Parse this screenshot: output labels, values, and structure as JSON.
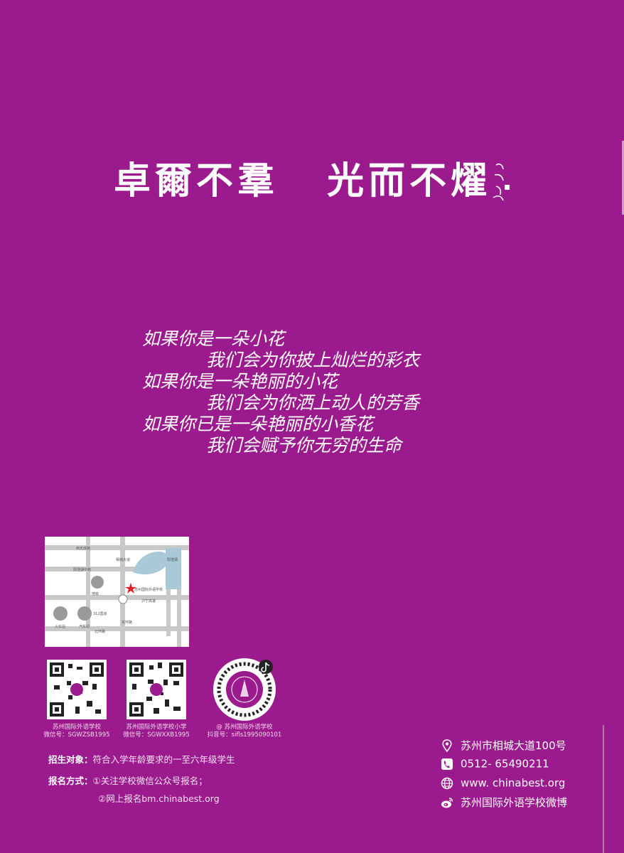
{
  "motto": {
    "part1": "卓爾不羣",
    "part2": "光而不燿"
  },
  "poem": [
    "如果你是一朵小花",
    "我们会为你披上灿烂的彩衣",
    "如果你是一朵艳丽的小花",
    "我们会为你洒上动人的芳香",
    "如果你已是一朵艳丽的小香花",
    "我们会赋予你无穷的生命"
  ],
  "map": {
    "labels": {
      "road1": "西天成路",
      "road2": "阳澄湖中路",
      "road3": "苏州北大街",
      "road4": "相城大道",
      "road5": "227省道",
      "road6": "阳澄湖",
      "road7": "沪宁高速",
      "road8": "苏嘉杭高速",
      "road9": "312国道",
      "road10": "北环路",
      "road11": "东环路",
      "station1": "火车站",
      "station2": "汽车站",
      "station3": "地铁",
      "school": "苏州国际外语学校"
    }
  },
  "qr_codes": [
    {
      "line1": "苏州国际外语学校",
      "line2": "微信号：SGWZSB1995"
    },
    {
      "line1": "苏州国际外语学校小学",
      "line2": "微信号：SGWXXB1995"
    },
    {
      "line1": "@ 苏州国际外语学校",
      "line2": "抖音号：sifls1995090101"
    }
  ],
  "enroll": {
    "target_label": "招生对象：",
    "target_value": "符合入学年龄要求的一至六年级学生",
    "method_label": "报名方式：",
    "method1": "①关注学校微信公众号报名；",
    "method2": "②网上报名bm.chinabest.org"
  },
  "contact": {
    "address": "苏州市相城大道100号",
    "phone": "0512- 65490211",
    "website": "www. chinabest.org",
    "weibo": "苏州国际外语学校微博"
  },
  "colors": {
    "background": "#9b1a8d",
    "text": "#ffffff"
  }
}
